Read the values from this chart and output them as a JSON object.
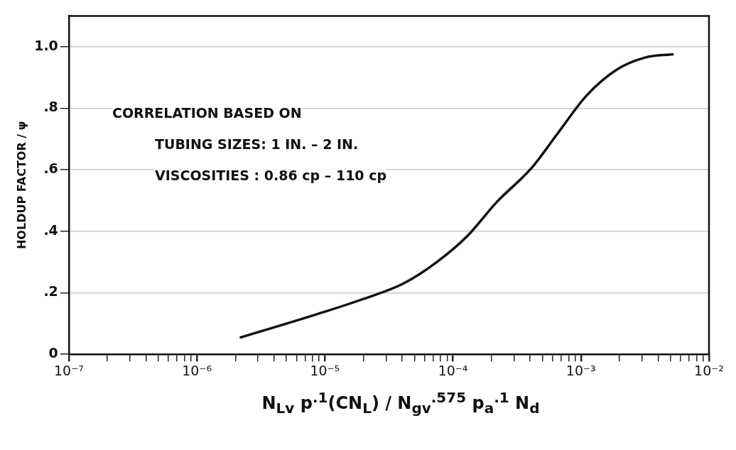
{
  "chart_data": {
    "type": "line",
    "ylabel": "HOLDUP FACTOR / ψ",
    "xlabel": "N$_{Lv}$ p$^{.1}$(CN$_{L}$) / N$_{gv}$$^{.575}$ p$_{a}$$^{.1}$ N$_{d}$",
    "annotations": [
      "CORRELATION BASED ON",
      "TUBING SIZES: 1 IN. – 2 IN.",
      "VISCOSITIES : 0.86 cp – 110 cp"
    ],
    "log": "x",
    "grid": "y",
    "legend": false,
    "marker": "none",
    "line_style": "solid",
    "xlim": [
      1e-07,
      0.01
    ],
    "ylim": [
      0,
      1.1
    ],
    "xticks": [
      {
        "value": 1e-07,
        "label": "10⁻⁷"
      },
      {
        "value": 2e-07,
        "label": null
      },
      {
        "value": 3e-07,
        "label": null
      },
      {
        "value": 4e-07,
        "label": null
      },
      {
        "value": 5e-07,
        "label": null
      },
      {
        "value": 6e-07,
        "label": null
      },
      {
        "value": 7e-07,
        "label": null
      },
      {
        "value": 8e-07,
        "label": null
      },
      {
        "value": 9e-07,
        "label": null
      },
      {
        "value": 1e-06,
        "label": "10⁻⁶"
      },
      {
        "value": 2e-06,
        "label": null
      },
      {
        "value": 3e-06,
        "label": null
      },
      {
        "value": 4e-06,
        "label": null
      },
      {
        "value": 5e-06,
        "label": null
      },
      {
        "value": 6e-06,
        "label": null
      },
      {
        "value": 7e-06,
        "label": null
      },
      {
        "value": 8e-06,
        "label": null
      },
      {
        "value": 9e-06,
        "label": null
      },
      {
        "value": 1e-05,
        "label": "10⁻⁵"
      },
      {
        "value": 2e-05,
        "label": null
      },
      {
        "value": 3e-05,
        "label": null
      },
      {
        "value": 4e-05,
        "label": null
      },
      {
        "value": 5e-05,
        "label": null
      },
      {
        "value": 6e-05,
        "label": null
      },
      {
        "value": 7e-05,
        "label": null
      },
      {
        "value": 8e-05,
        "label": null
      },
      {
        "value": 9e-05,
        "label": null
      },
      {
        "value": 0.0001,
        "label": "10⁻⁴"
      },
      {
        "value": 0.0002,
        "label": null
      },
      {
        "value": 0.0003,
        "label": null
      },
      {
        "value": 0.0004,
        "label": null
      },
      {
        "value": 0.0005,
        "label": null
      },
      {
        "value": 0.0006,
        "label": null
      },
      {
        "value": 0.0007,
        "label": null
      },
      {
        "value": 0.0008,
        "label": null
      },
      {
        "value": 0.0009,
        "label": null
      },
      {
        "value": 0.001,
        "label": "10⁻³"
      },
      {
        "value": 0.002,
        "label": null
      },
      {
        "value": 0.003,
        "label": null
      },
      {
        "value": 0.004,
        "label": null
      },
      {
        "value": 0.005,
        "label": null
      },
      {
        "value": 0.006,
        "label": null
      },
      {
        "value": 0.007,
        "label": null
      },
      {
        "value": 0.008,
        "label": null
      },
      {
        "value": 0.009,
        "label": null
      },
      {
        "value": 0.01,
        "label": "10⁻²"
      }
    ],
    "yticks": [
      {
        "value": 0,
        "label": "0"
      },
      {
        "value": 0.2,
        "label": ".2"
      },
      {
        "value": 0.4,
        "label": ".4"
      },
      {
        "value": 0.6,
        "label": ".6"
      },
      {
        "value": 0.8,
        "label": ".8"
      },
      {
        "value": 1,
        "label": "1.0"
      }
    ],
    "series": [
      {
        "color": "#111111",
        "x": [
          2.2e-06,
          8.6e-06,
          2e-05,
          4.1e-05,
          7.5e-05,
          0.00013,
          0.00022,
          0.00041,
          0.00065,
          0.0011,
          0.0019,
          0.0032,
          0.0052
        ],
        "values": [
          0.055,
          0.13,
          0.18,
          0.23,
          0.3,
          0.385,
          0.495,
          0.605,
          0.715,
          0.84,
          0.925,
          0.965,
          0.975
        ]
      }
    ]
  }
}
